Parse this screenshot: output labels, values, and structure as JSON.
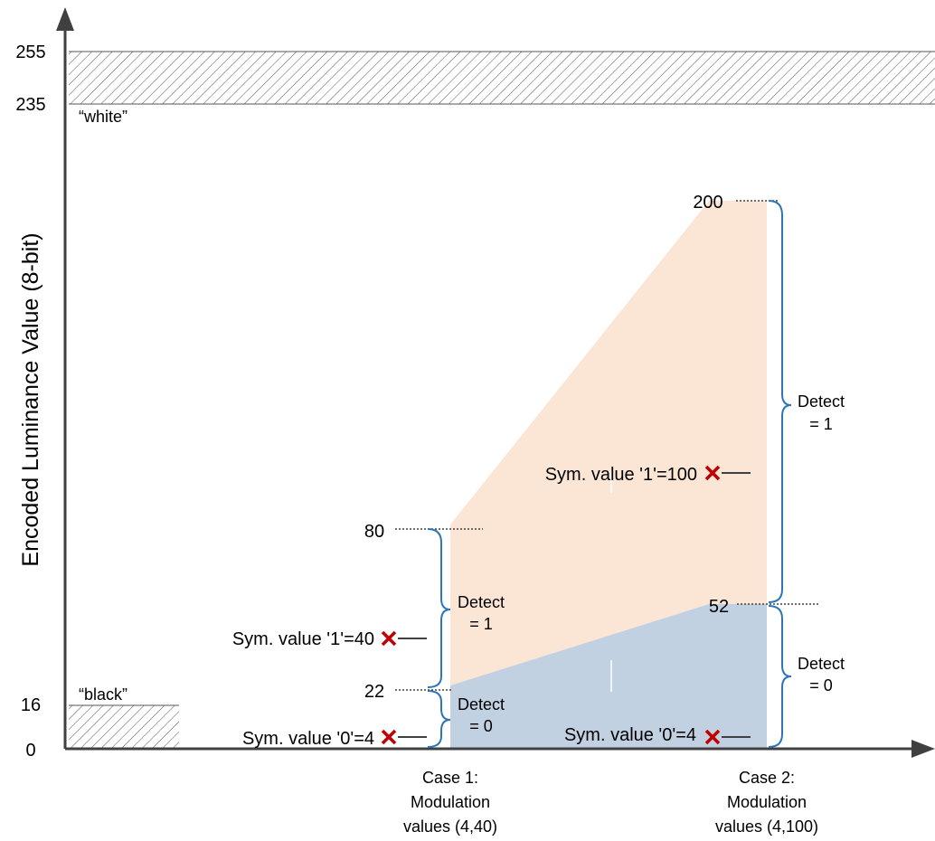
{
  "y_axis_label": "Encoded Luminance Value (8-bit)",
  "y_ticks": [
    "255",
    "235",
    "16",
    "0"
  ],
  "white_label": "“white”",
  "black_label": "“black”",
  "case1": {
    "level_labels": [
      "80",
      "22"
    ],
    "symbol_1": "Sym. value '1'=40",
    "symbol_0": "Sym. value '0'=4",
    "detect_1": [
      "Detect",
      "= 1"
    ],
    "detect_0": [
      "Detect",
      "= 0"
    ],
    "caption": [
      "Case 1:",
      "Modulation",
      "values (4,40)"
    ]
  },
  "case2": {
    "level_labels": [
      "200",
      "52"
    ],
    "symbol_1": "Sym. value '1'=100",
    "symbol_0": "Sym. value '0'=4",
    "detect_1": [
      "Detect",
      "= 1"
    ],
    "detect_0": [
      "Detect",
      "= 0"
    ],
    "caption": [
      "Case 2:",
      "Modulation",
      "values (4,100)"
    ]
  },
  "colors": {
    "detect_1_region": "#fbe6d6",
    "detect_0_region": "#c2d1e2",
    "brace": "#2e75b6",
    "marker": "#c00000",
    "axis": "#404040"
  },
  "icons": {
    "marker": "x-mark-icon"
  }
}
